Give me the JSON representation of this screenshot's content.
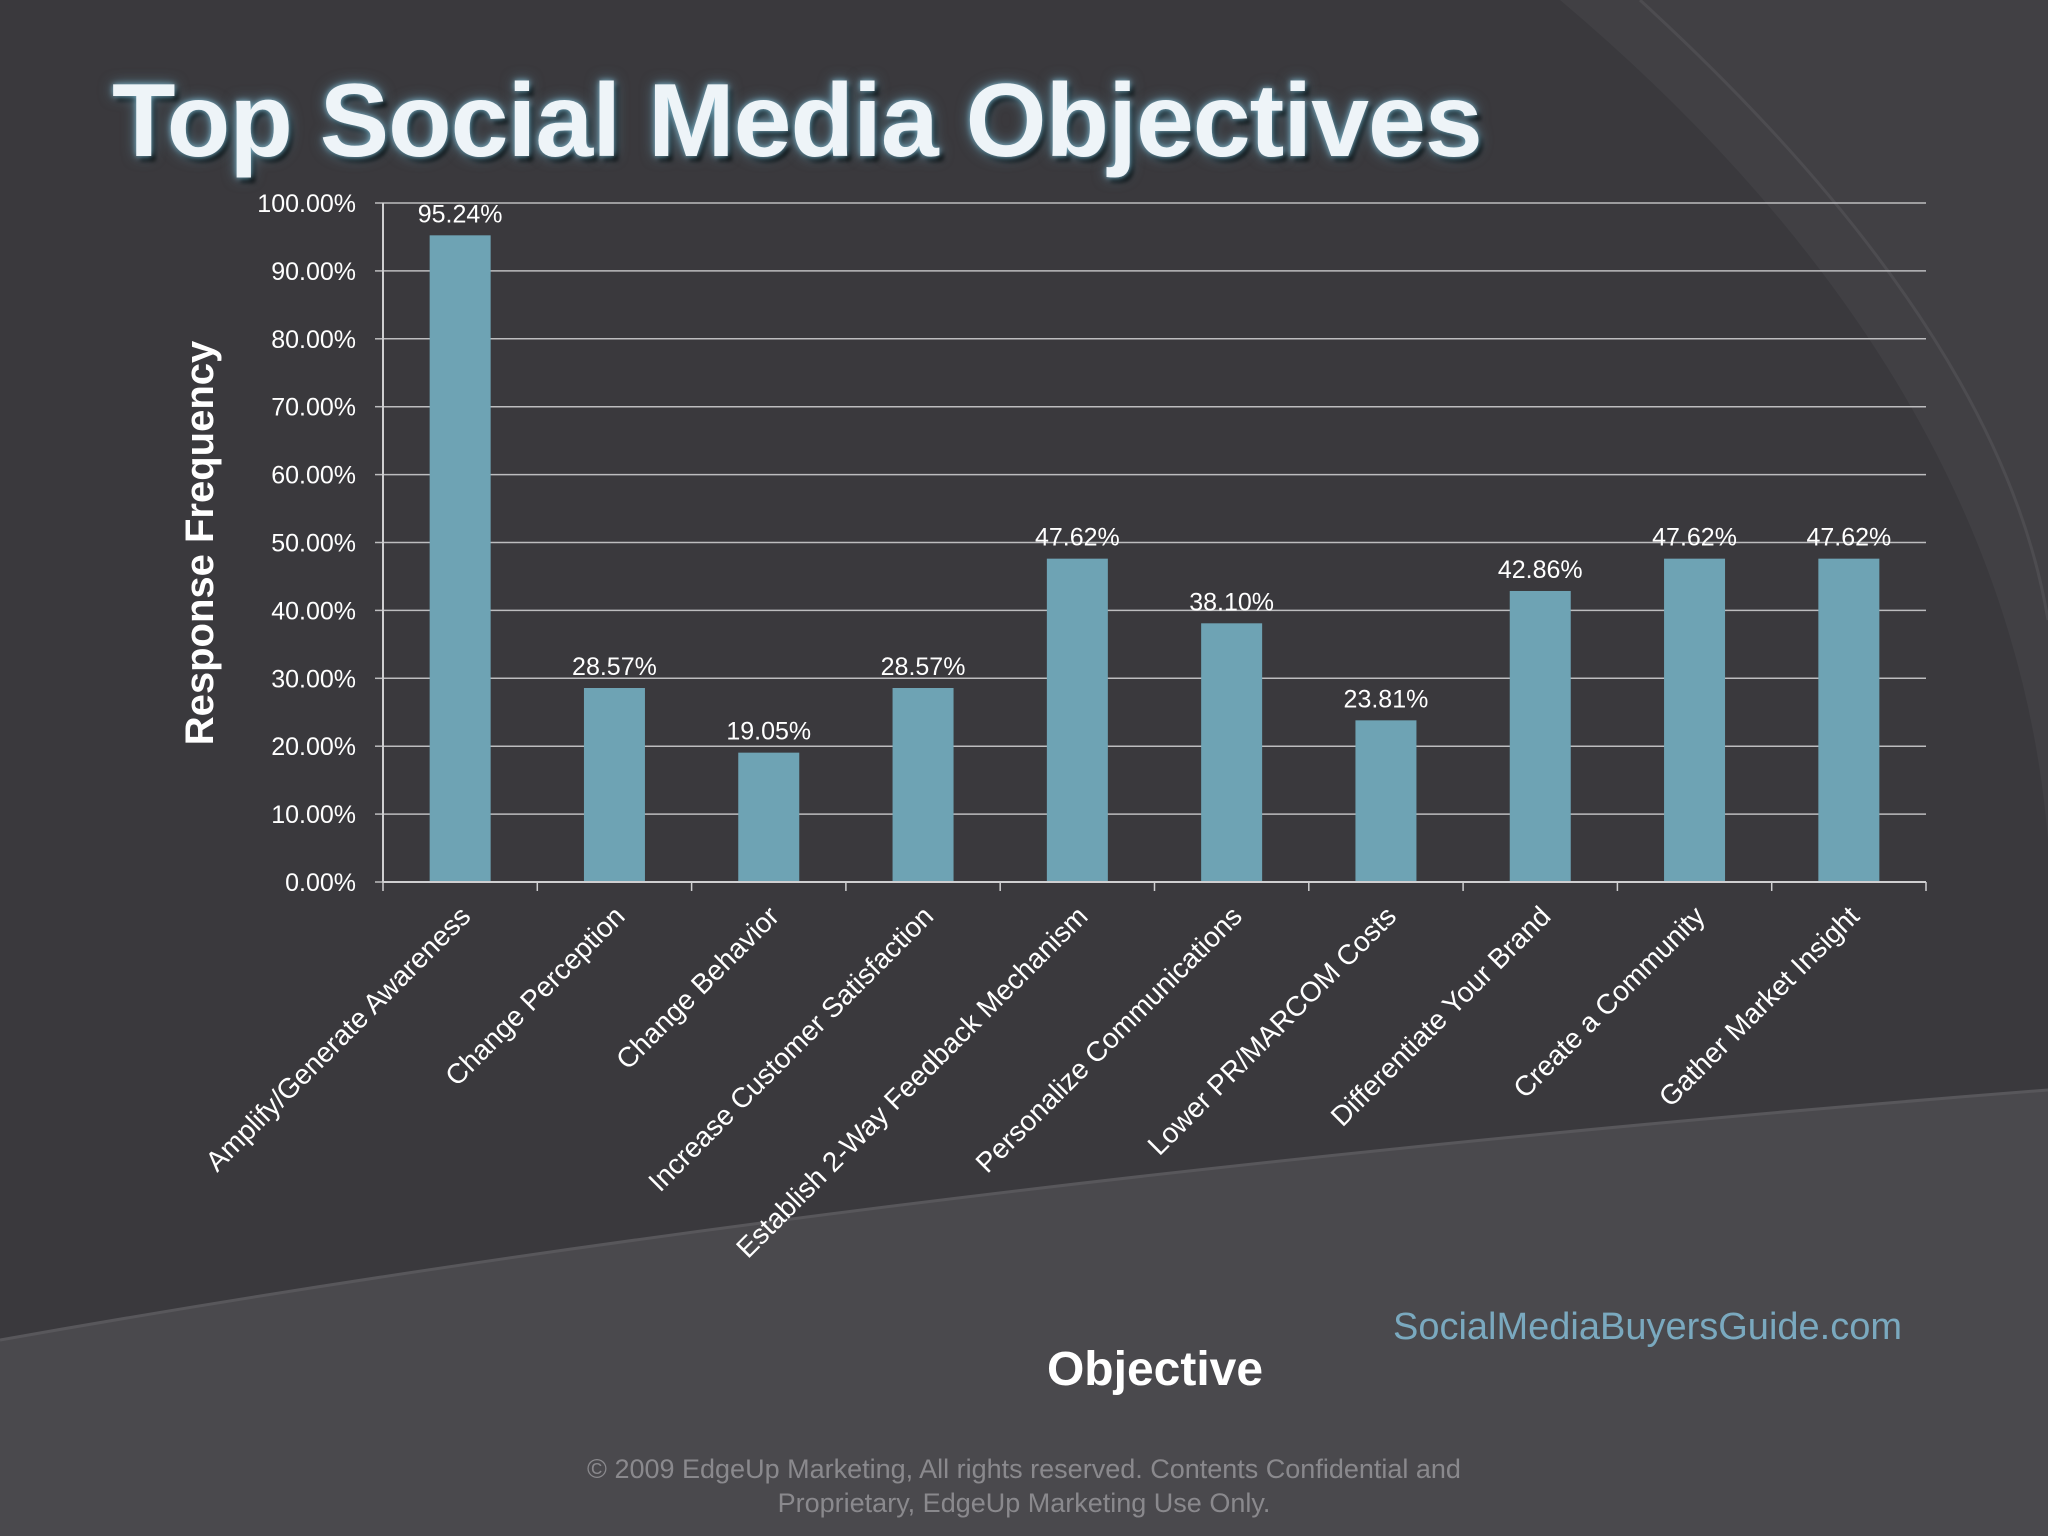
{
  "colors": {
    "background": "#3a393d",
    "bar": "#6ea3b4",
    "text": "#ffffff",
    "accent": "#7aa9bf"
  },
  "slide": {
    "title": "Top Social Media Objectives",
    "website": "SocialMediaBuyersGuide.com",
    "copyright_line1": "© 2009 EdgeUp Marketing, All rights reserved. Contents Confidential and",
    "copyright_line2": "Proprietary, EdgeUp Marketing Use Only."
  },
  "chart_data": {
    "type": "bar",
    "title": "Top Social Media Objectives",
    "xlabel": "Objective",
    "ylabel": "Response Frequency",
    "ylim": [
      0,
      100
    ],
    "ytick_step": 10,
    "ytick_labels": [
      "0.00%",
      "10.00%",
      "20.00%",
      "30.00%",
      "40.00%",
      "50.00%",
      "60.00%",
      "70.00%",
      "80.00%",
      "90.00%",
      "100.00%"
    ],
    "grid": true,
    "categories": [
      "Amplify/Generate Awareness",
      "Change Perception",
      "Change Behavior",
      "Increase Customer Satisfaction",
      "Establish 2-Way Feedback Mechanism",
      "Personalize Communications",
      "Lower PR/MARCOM Costs",
      "Differentiate Your Brand",
      "Create a Community",
      "Gather Market Insight"
    ],
    "values": [
      95.24,
      28.57,
      19.05,
      28.57,
      47.62,
      38.1,
      23.81,
      42.86,
      47.62,
      47.62
    ],
    "data_labels": [
      "95.24%",
      "28.57%",
      "19.05%",
      "28.57%",
      "47.62%",
      "38.10%",
      "23.81%",
      "42.86%",
      "47.62%",
      "47.62%"
    ]
  }
}
